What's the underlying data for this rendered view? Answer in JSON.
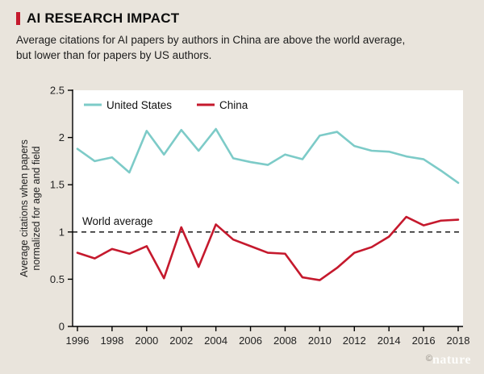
{
  "header": {
    "title": "AI RESEARCH IMPACT",
    "subtitle": "Average citations for AI papers by authors in China are above the world average, but lower than for papers by US authors."
  },
  "footer": {
    "copyright": "©",
    "brand": "nature"
  },
  "colors": {
    "background": "#e9e4dc",
    "accent_red": "#c5192d",
    "plot_bg": "#ffffff",
    "axis": "#000000",
    "us_line": "#7dcbc8",
    "china_line": "#c5192d"
  },
  "chart_data": {
    "type": "line",
    "title": "AI RESEARCH IMPACT",
    "xlabel": "",
    "ylabel": "Average citations when papers\nnormalized for age and field",
    "ylim": [
      0,
      2.5
    ],
    "y_ticks": [
      0,
      0.5,
      1,
      1.5,
      2,
      2.5
    ],
    "x_ticks": [
      1996,
      1998,
      2000,
      2002,
      2004,
      2006,
      2008,
      2010,
      2012,
      2014,
      2016,
      2018
    ],
    "x": [
      1996,
      1997,
      1998,
      1999,
      2000,
      2001,
      2002,
      2003,
      2004,
      2005,
      2006,
      2007,
      2008,
      2009,
      2010,
      2011,
      2012,
      2013,
      2014,
      2015,
      2016,
      2017,
      2018
    ],
    "series": [
      {
        "name": "United States",
        "color": "#7dcbc8",
        "values": [
          1.88,
          1.75,
          1.79,
          1.63,
          2.07,
          1.82,
          2.08,
          1.86,
          2.09,
          1.78,
          1.74,
          1.71,
          1.82,
          1.77,
          2.02,
          2.06,
          1.91,
          1.86,
          1.85,
          1.8,
          1.77,
          1.65,
          1.52
        ]
      },
      {
        "name": "China",
        "color": "#c5192d",
        "values": [
          0.78,
          0.72,
          0.82,
          0.77,
          0.85,
          0.51,
          1.05,
          0.63,
          1.08,
          0.92,
          0.85,
          0.78,
          0.77,
          0.52,
          0.49,
          0.62,
          0.78,
          0.84,
          0.95,
          1.16,
          1.07,
          1.12,
          1.13
        ]
      }
    ],
    "annotations": [
      {
        "label": "World average",
        "y": 1,
        "style": "dashed"
      }
    ],
    "legend_position": "top-inside",
    "grid": false
  }
}
